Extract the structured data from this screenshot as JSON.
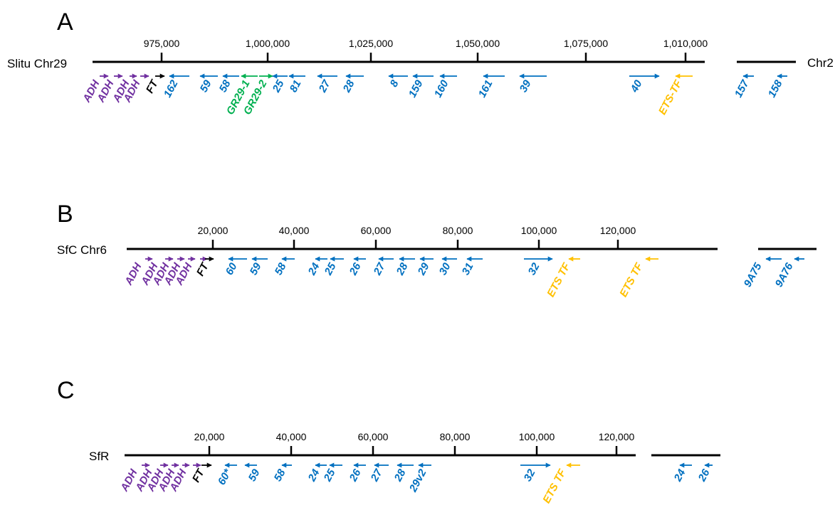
{
  "colors": {
    "axis": "#000000",
    "adh": "#7030A0",
    "ft": "#000000",
    "gr": "#00B050",
    "numbered": "#0070C0",
    "ets": "#FFC000"
  },
  "panels": [
    {
      "id": "A",
      "panel_label": "A",
      "chromosome_label": "Slitu Chr29",
      "ticks": [
        "975,000",
        "1,000,000",
        "1,025,000",
        "1,050,000",
        "1,075,000",
        "1,010,000"
      ],
      "right_segment_label": "Chr2",
      "genes": [
        {
          "label": "ADH",
          "type": "adh",
          "strand": "+"
        },
        {
          "label": "ADH",
          "type": "adh",
          "strand": "+"
        },
        {
          "label": "ADH",
          "type": "adh",
          "strand": "+"
        },
        {
          "label": "ADH",
          "type": "adh",
          "strand": "+"
        },
        {
          "label": "FT",
          "type": "ft",
          "strand": "+"
        },
        {
          "label": "162",
          "type": "numbered",
          "strand": "-"
        },
        {
          "label": "59",
          "type": "numbered",
          "strand": "-"
        },
        {
          "label": "58",
          "type": "numbered",
          "strand": "-"
        },
        {
          "label": "GR29-1",
          "type": "gr",
          "strand": "-"
        },
        {
          "label": "GR29-2",
          "type": "gr",
          "strand": "+"
        },
        {
          "label": "25",
          "type": "numbered",
          "strand": "-"
        },
        {
          "label": "81",
          "type": "numbered",
          "strand": "-"
        },
        {
          "label": "27",
          "type": "numbered",
          "strand": "-"
        },
        {
          "label": "28",
          "type": "numbered",
          "strand": "-"
        },
        {
          "label": "8",
          "type": "numbered",
          "strand": "-"
        },
        {
          "label": "159",
          "type": "numbered",
          "strand": "-"
        },
        {
          "label": "160",
          "type": "numbered",
          "strand": "-"
        },
        {
          "label": "161",
          "type": "numbered",
          "strand": "-"
        },
        {
          "label": "39",
          "type": "numbered",
          "strand": "-"
        },
        {
          "label": "40",
          "type": "numbered",
          "strand": "+"
        },
        {
          "label": "ETS-TF",
          "type": "ets",
          "strand": "-"
        },
        {
          "label": "157",
          "type": "numbered",
          "strand": "-"
        },
        {
          "label": "158",
          "type": "numbered",
          "strand": "-"
        }
      ]
    },
    {
      "id": "B",
      "panel_label": "B",
      "chromosome_label": "SfC Chr6",
      "ticks": [
        "20,000",
        "40,000",
        "60,000",
        "80,000",
        "100,000",
        "120,000"
      ],
      "right_segment_label": "",
      "genes": [
        {
          "label": "ADH",
          "type": "adh",
          "strand": "+"
        },
        {
          "label": "ADH",
          "type": "adh",
          "strand": "+"
        },
        {
          "label": "ADH",
          "type": "adh",
          "strand": "+"
        },
        {
          "label": "ADH",
          "type": "adh",
          "strand": "+"
        },
        {
          "label": "ADH",
          "type": "adh",
          "strand": "+"
        },
        {
          "label": "FT",
          "type": "ft",
          "strand": "+"
        },
        {
          "label": "60",
          "type": "numbered",
          "strand": "-"
        },
        {
          "label": "59",
          "type": "numbered",
          "strand": "-"
        },
        {
          "label": "58",
          "type": "numbered",
          "strand": "-"
        },
        {
          "label": "24",
          "type": "numbered",
          "strand": "-"
        },
        {
          "label": "25",
          "type": "numbered",
          "strand": "-"
        },
        {
          "label": "26",
          "type": "numbered",
          "strand": "-"
        },
        {
          "label": "27",
          "type": "numbered",
          "strand": "-"
        },
        {
          "label": "28",
          "type": "numbered",
          "strand": "-"
        },
        {
          "label": "29",
          "type": "numbered",
          "strand": "-"
        },
        {
          "label": "30",
          "type": "numbered",
          "strand": "-"
        },
        {
          "label": "31",
          "type": "numbered",
          "strand": "-"
        },
        {
          "label": "32",
          "type": "numbered",
          "strand": "+"
        },
        {
          "label": "ETS TF",
          "type": "ets",
          "strand": "-"
        },
        {
          "label": "ETS TF",
          "type": "ets",
          "strand": "-"
        },
        {
          "label": "9A75",
          "type": "numbered",
          "strand": "-"
        },
        {
          "label": "9A76",
          "type": "numbered",
          "strand": "-"
        }
      ]
    },
    {
      "id": "C",
      "panel_label": "C",
      "chromosome_label": "SfR",
      "ticks": [
        "20,000",
        "40,000",
        "60,000",
        "80,000",
        "100,000",
        "120,000"
      ],
      "right_segment_label": "",
      "genes": [
        {
          "label": "ADH",
          "type": "adh",
          "strand": "+"
        },
        {
          "label": "ADH",
          "type": "adh",
          "strand": "+"
        },
        {
          "label": "ADH",
          "type": "adh",
          "strand": "+"
        },
        {
          "label": "ADH",
          "type": "adh",
          "strand": "+"
        },
        {
          "label": "ADH",
          "type": "adh",
          "strand": "+"
        },
        {
          "label": "FT",
          "type": "ft",
          "strand": "+"
        },
        {
          "label": "60*",
          "type": "numbered",
          "strand": "-"
        },
        {
          "label": "59",
          "type": "numbered",
          "strand": "-"
        },
        {
          "label": "58",
          "type": "numbered",
          "strand": "-"
        },
        {
          "label": "24",
          "type": "numbered",
          "strand": "-"
        },
        {
          "label": "25",
          "type": "numbered",
          "strand": "-"
        },
        {
          "label": "26",
          "type": "numbered",
          "strand": "-"
        },
        {
          "label": "27",
          "type": "numbered",
          "strand": "-"
        },
        {
          "label": "28",
          "type": "numbered",
          "strand": "-"
        },
        {
          "label": "29v2",
          "type": "numbered",
          "strand": "-"
        },
        {
          "label": "32",
          "type": "numbered",
          "strand": "+"
        },
        {
          "label": "ETS TF",
          "type": "ets",
          "strand": "-"
        },
        {
          "label": "24",
          "type": "numbered",
          "strand": "-"
        },
        {
          "label": "26",
          "type": "numbered",
          "strand": "-"
        }
      ]
    }
  ]
}
